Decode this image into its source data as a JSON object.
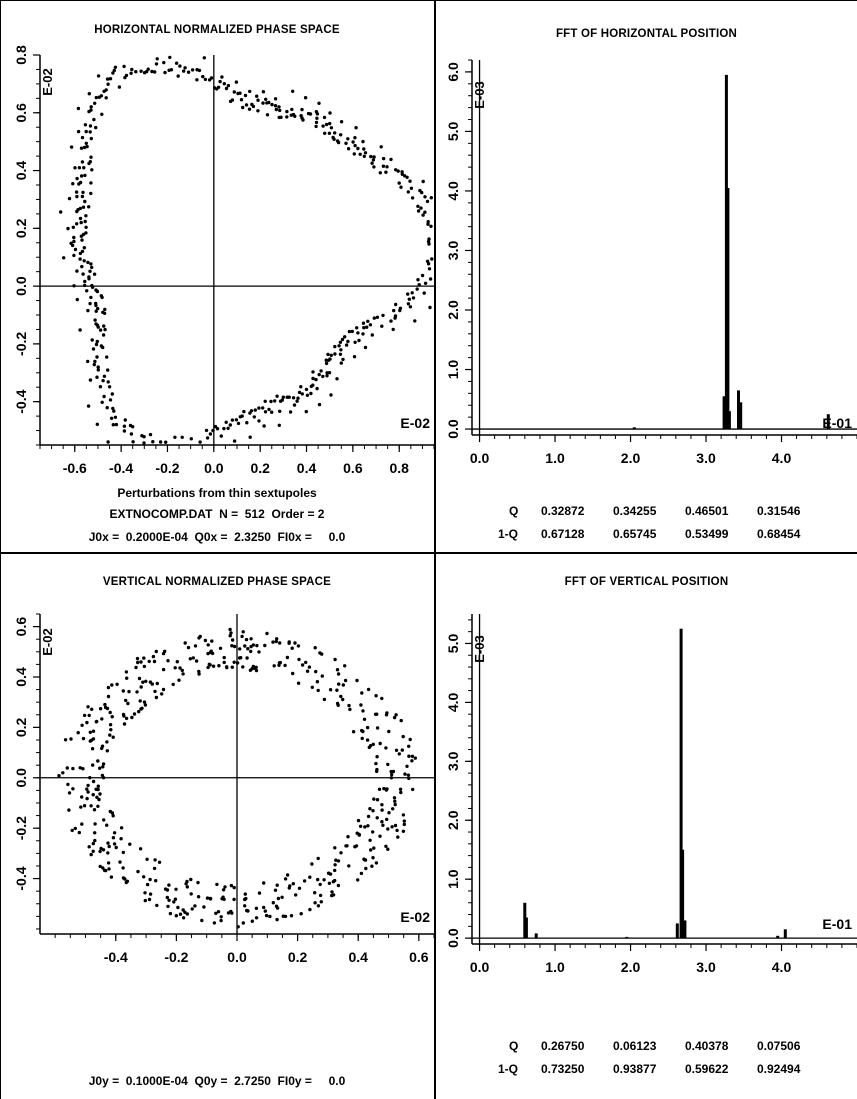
{
  "chart_data": [
    {
      "id": "hps",
      "type": "scatter",
      "title": "HORIZONTAL NORMALIZED PHASE SPACE",
      "xlabel": "Perturbations from thin sextupoles",
      "xlim": [
        -0.75,
        0.95
      ],
      "ylim": [
        -0.55,
        0.8
      ],
      "x_ticks": [
        "-0.6",
        "-0.4",
        "-0.2",
        "0.0",
        "0.2",
        "0.4",
        "0.6",
        "0.8"
      ],
      "y_ticks": [
        "-0.4",
        "-0.2",
        "0.0",
        "0.2",
        "0.4",
        "0.6",
        "0.8"
      ],
      "x_scale_label": "E-02",
      "y_scale_label": "E-02",
      "shape": "triangular-ring",
      "point_count": 512,
      "info": [
        "EXTNOCOMP.DAT  N =  512  Order = 2",
        "J0x =  0.2000E-04  Q0x =  2.3250  FI0x =     0.0"
      ]
    },
    {
      "id": "hfft",
      "type": "bar",
      "title": "FFT OF HORIZONTAL POSITION",
      "xlim": [
        -0.1,
        5.0
      ],
      "ylim": [
        -0.1,
        6.2
      ],
      "x_ticks": [
        "0.0",
        "1.0",
        "2.0",
        "3.0",
        "4.0"
      ],
      "y_ticks": [
        "0.0",
        "1.0",
        "2.0",
        "3.0",
        "4.0",
        "5.0",
        "6.0"
      ],
      "x_scale_label": "E-01",
      "y_scale_label": "E-03",
      "peaks": [
        {
          "x": 2.05,
          "y": 0.03
        },
        {
          "x": 3.24,
          "y": 0.55
        },
        {
          "x": 3.27,
          "y": 5.95
        },
        {
          "x": 3.29,
          "y": 4.05
        },
        {
          "x": 3.31,
          "y": 0.3
        },
        {
          "x": 3.43,
          "y": 0.65
        },
        {
          "x": 3.46,
          "y": 0.45
        },
        {
          "x": 4.62,
          "y": 0.25
        }
      ],
      "info_rows": [
        {
          "label": "Q",
          "values": [
            "0.32872",
            "0.34255",
            "0.46501",
            "0.31546"
          ]
        },
        {
          "label": "1-Q",
          "values": [
            "0.67128",
            "0.65745",
            "0.53499",
            "0.68454"
          ]
        }
      ]
    },
    {
      "id": "vps",
      "type": "scatter",
      "title": "VERTICAL NORMALIZED PHASE SPACE",
      "xlim": [
        -0.65,
        0.65
      ],
      "ylim": [
        -0.62,
        0.65
      ],
      "x_ticks": [
        "-0.4",
        "-0.2",
        "0.0",
        "0.2",
        "0.4",
        "0.6"
      ],
      "y_ticks": [
        "-0.4",
        "-0.2",
        "0.0",
        "0.2",
        "0.4",
        "0.6"
      ],
      "x_scale_label": "E-02",
      "y_scale_label": "E-02",
      "shape": "annulus",
      "point_count": 512,
      "info": [
        "J0y =  0.1000E-04  Q0y =  2.7250  FI0y =     0.0"
      ]
    },
    {
      "id": "vfft",
      "type": "bar",
      "title": "FFT OF VERTICAL POSITION",
      "xlim": [
        -0.1,
        5.0
      ],
      "ylim": [
        -0.1,
        5.5
      ],
      "x_ticks": [
        "0.0",
        "1.0",
        "2.0",
        "3.0",
        "4.0"
      ],
      "y_ticks": [
        "0.0",
        "1.0",
        "2.0",
        "3.0",
        "4.0",
        "5.0"
      ],
      "x_scale_label": "E-01",
      "y_scale_label": "E-03",
      "peaks": [
        {
          "x": 0.6,
          "y": 0.6
        },
        {
          "x": 0.62,
          "y": 0.35
        },
        {
          "x": 0.75,
          "y": 0.08
        },
        {
          "x": 1.95,
          "y": 0.02
        },
        {
          "x": 2.62,
          "y": 0.25
        },
        {
          "x": 2.67,
          "y": 5.25
        },
        {
          "x": 2.69,
          "y": 1.5
        },
        {
          "x": 2.72,
          "y": 0.3
        },
        {
          "x": 4.05,
          "y": 0.15
        },
        {
          "x": 3.95,
          "y": 0.04
        }
      ],
      "info_rows": [
        {
          "label": "Q",
          "values": [
            "0.26750",
            "0.06123",
            "0.40378",
            "0.07506"
          ]
        },
        {
          "label": "1-Q",
          "values": [
            "0.73250",
            "0.93877",
            "0.59622",
            "0.92494"
          ]
        }
      ]
    }
  ]
}
